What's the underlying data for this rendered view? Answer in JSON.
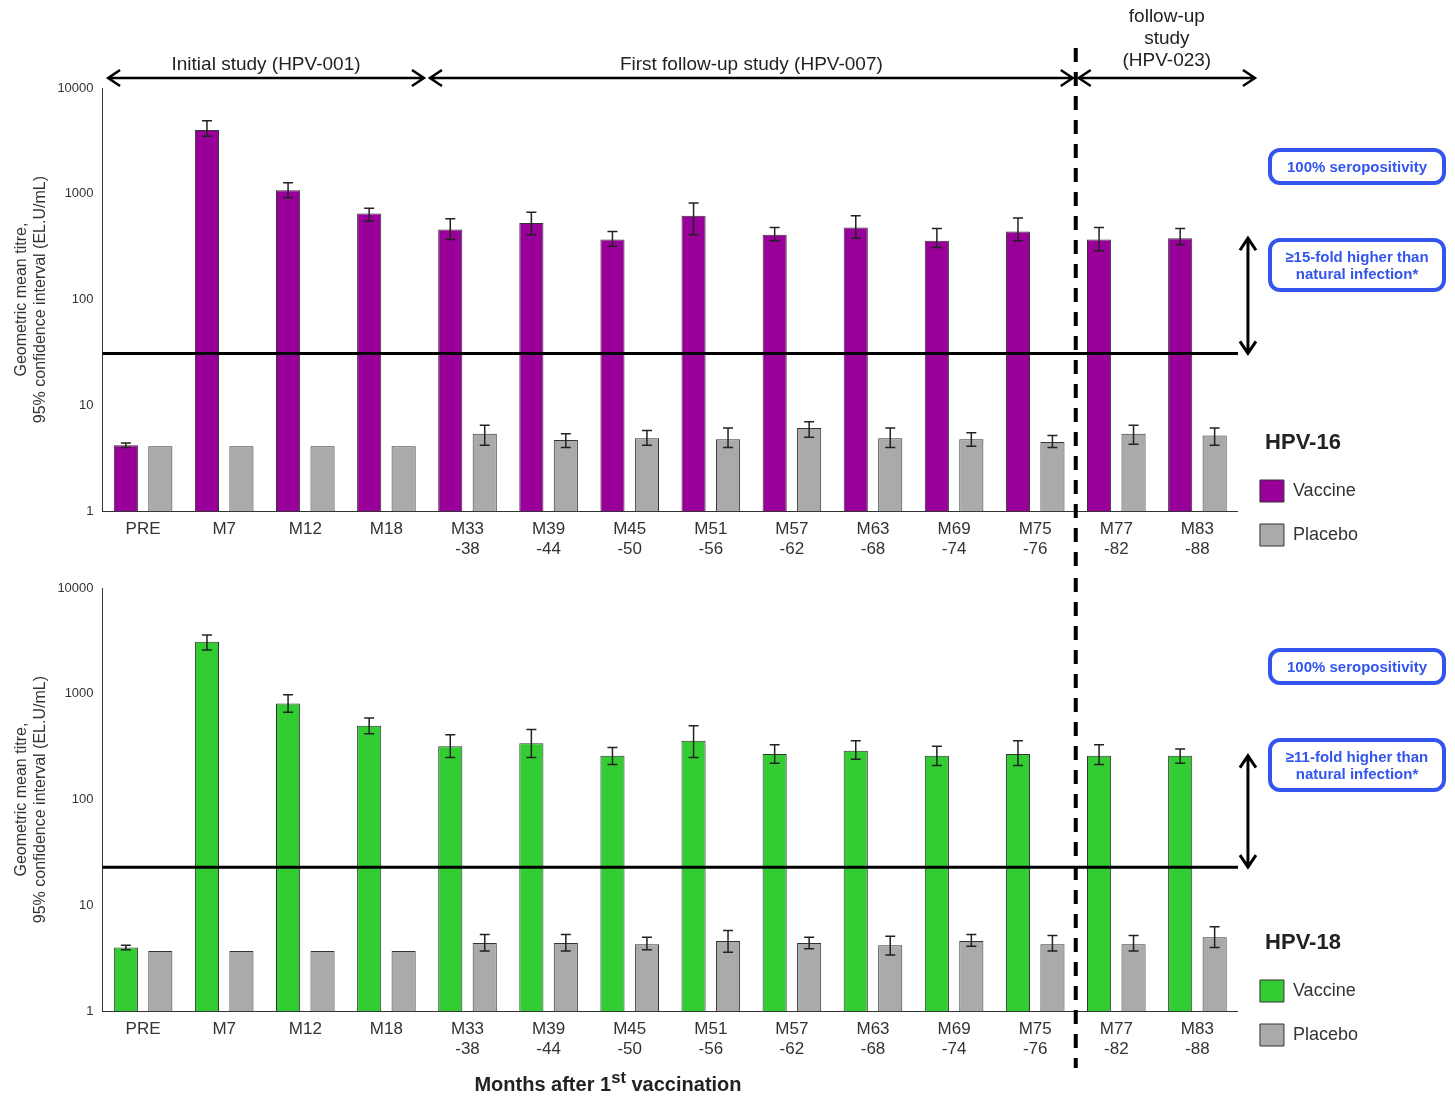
{
  "chart_data": [
    {
      "type": "bar",
      "ylabel": "Geometric mean titre, 95% confidence interval (EL.U/mL)",
      "legend_title": "HPV-16",
      "legend": "right",
      "log": true,
      "grid": false,
      "categories": [
        "PRE",
        "M7",
        "M12",
        "M18",
        "M33\n-38",
        "M39\n-44",
        "M45\n-50",
        "M51\n-56",
        "M57\n-62",
        "M63\n-68",
        "M69\n-74",
        "M75\n-76",
        "M77\n-82",
        "M83\n-88"
      ],
      "ylim": [
        1,
        10000
      ],
      "yticks": [
        1,
        10,
        100,
        1000,
        10000
      ],
      "series": [
        {
          "name": "Vaccine",
          "color": "#990099",
          "values": [
            4.2,
            4000,
            1080,
            650,
            460,
            530,
            370,
            620,
            410,
            480,
            360,
            440,
            370,
            380
          ],
          "errors": [
            [
              4.0,
              4.4
            ],
            [
              3500,
              4900
            ],
            [
              920,
              1270
            ],
            [
              550,
              730
            ],
            [
              370,
              580
            ],
            [
              410,
              670
            ],
            [
              320,
              440
            ],
            [
              410,
              820
            ],
            [
              360,
              480
            ],
            [
              380,
              620
            ],
            [
              310,
              470
            ],
            [
              360,
              590
            ],
            [
              290,
              480
            ],
            [
              330,
              470
            ]
          ]
        },
        {
          "name": "Placebo",
          "color": "#aaaaaa",
          "values": [
            4.1,
            4.1,
            4.1,
            4.1,
            5.4,
            4.7,
            4.9,
            4.8,
            6.1,
            4.9,
            4.8,
            4.5,
            5.4,
            5.2
          ],
          "errors": [
            null,
            null,
            null,
            null,
            [
              4.2,
              6.5
            ],
            [
              4.0,
              5.4
            ],
            [
              4.2,
              5.8
            ],
            [
              4.0,
              6.1
            ],
            [
              5.0,
              7.0
            ],
            [
              4.0,
              6.1
            ],
            [
              4.1,
              5.5
            ],
            [
              4.0,
              5.2
            ],
            [
              4.3,
              6.5
            ],
            [
              4.2,
              6.1
            ]
          ]
        }
      ],
      "ref_lines": [
        {
          "axis": "y",
          "value": 31,
          "color": "#000000"
        }
      ],
      "annotations": [
        "Initial study (HPV-001)",
        "First follow-up study (HPV-007)",
        "follow-up study (HPV-023)",
        "100% seropositivity",
        "≥15-fold higher than natural infection*"
      ]
    },
    {
      "type": "bar",
      "ylabel": "Geometric mean titre, 95% confidence interval (EL.U/mL)",
      "xlabel": "Months after 1$^{st}$ vaccination",
      "legend_title": "HPV-18",
      "legend": "right",
      "log": true,
      "grid": false,
      "categories": [
        "PRE",
        "M7",
        "M12",
        "M18",
        "M33\n-38",
        "M39\n-44",
        "M45\n-50",
        "M51\n-56",
        "M57\n-62",
        "M63\n-68",
        "M69\n-74",
        "M75\n-76",
        "M77\n-82",
        "M83\n-88"
      ],
      "ylim": [
        1,
        10000
      ],
      "yticks": [
        1,
        10,
        100,
        1000,
        10000
      ],
      "series": [
        {
          "name": "Vaccine",
          "color": "#33cc33",
          "values": [
            4.0,
            3100,
            810,
            500,
            320,
            340,
            260,
            360,
            270,
            290,
            260,
            270,
            260,
            260
          ],
          "errors": [
            [
              3.8,
              4.2
            ],
            [
              2600,
              3600
            ],
            [
              670,
              980
            ],
            [
              420,
              590
            ],
            [
              250,
              410
            ],
            [
              250,
              460
            ],
            [
              215,
              310
            ],
            [
              250,
              500
            ],
            [
              220,
              330
            ],
            [
              240,
              360
            ],
            [
              210,
              320
            ],
            [
              210,
              360
            ],
            [
              215,
              330
            ],
            [
              220,
              300
            ]
          ]
        },
        {
          "name": "Placebo",
          "color": "#aaaaaa",
          "values": [
            3.7,
            3.7,
            3.7,
            3.7,
            4.4,
            4.4,
            4.3,
            4.6,
            4.4,
            4.2,
            4.6,
            4.3,
            4.3,
            5.0
          ],
          "errors": [
            null,
            null,
            null,
            null,
            [
              3.7,
              5.3
            ],
            [
              3.7,
              5.3
            ],
            [
              3.8,
              5.0
            ],
            [
              3.6,
              5.8
            ],
            [
              3.9,
              5.0
            ],
            [
              3.4,
              5.1
            ],
            [
              4.1,
              5.3
            ],
            [
              3.7,
              5.2
            ],
            [
              3.7,
              5.2
            ],
            [
              4.0,
              6.3
            ]
          ]
        }
      ],
      "ref_lines": [
        {
          "axis": "y",
          "value": 23,
          "color": "#000000"
        }
      ],
      "annotations": [
        "100% seropositivity",
        "≥11-fold higher than natural infection*"
      ]
    }
  ]
}
